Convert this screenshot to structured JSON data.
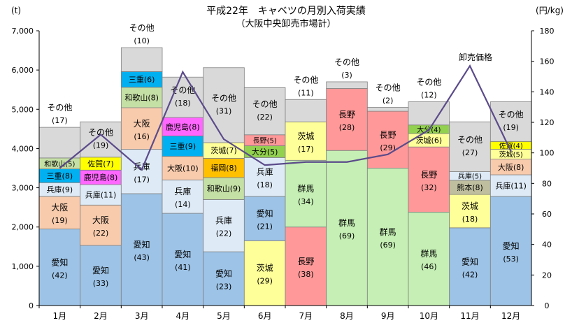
{
  "chart_data": {
    "type": "stacked-bar-with-line",
    "title": "平成22年　キャベツの月別入荷実績",
    "subtitle": "（大阪中央卸売市場計）",
    "left_unit": "(t)",
    "right_unit": "(円/kg)",
    "ylim_left": [
      0,
      7000
    ],
    "yticks_left": [
      "0",
      "1,000",
      "2,000",
      "3,000",
      "4,000",
      "5,000",
      "6,000",
      "7,000"
    ],
    "ylim_right": [
      0,
      180
    ],
    "yticks_right": [
      "0",
      "20",
      "40",
      "60",
      "80",
      "100",
      "120",
      "140",
      "160",
      "180"
    ],
    "grid": false,
    "categories": [
      "1月",
      "2月",
      "3月",
      "4月",
      "5月",
      "6月",
      "7月",
      "8月",
      "9月",
      "10月",
      "11月",
      "12月"
    ],
    "colors": {
      "愛知": "#9DC3E6",
      "大阪": "#F8CBAD",
      "兵庫": "#DEEBF7",
      "三重": "#00B0F0",
      "和歌山": "#C5E0A5",
      "佐賀": "#FFFF00",
      "鹿児島": "#FF66FF",
      "福岡": "#FFC000",
      "茨城": "#FFFF99",
      "群馬": "#C5EFB4",
      "長野": "#FF9999",
      "大分": "#92D050",
      "熊本": "#BFBFA0",
      "その他": "#D9D9D9"
    },
    "bars": [
      {
        "month": "1月",
        "stack": [
          {
            "name": "愛知",
            "value": 1950,
            "label": "愛知",
            "share": "(42)"
          },
          {
            "name": "大阪",
            "value": 830,
            "label": "大阪",
            "share": "(19)"
          },
          {
            "name": "兵庫",
            "value": 350,
            "label": "兵庫",
            "share": "(9)"
          },
          {
            "name": "三重",
            "value": 350,
            "label": "三重",
            "share": "(8)"
          },
          {
            "name": "和歌山",
            "value": 280,
            "label": "和歌山",
            "share": "(5)"
          },
          {
            "name": "その他",
            "value": 780,
            "label": "その他",
            "share": "(17)"
          }
        ]
      },
      {
        "month": "2月",
        "stack": [
          {
            "name": "愛知",
            "value": 1530,
            "label": "愛知",
            "share": "(33)"
          },
          {
            "name": "大阪",
            "value": 1030,
            "label": "大阪",
            "share": "(22)"
          },
          {
            "name": "兵庫",
            "value": 520,
            "label": "兵庫",
            "share": "(11)"
          },
          {
            "name": "鹿児島",
            "value": 370,
            "label": "鹿児島",
            "share": "(8)"
          },
          {
            "name": "佐賀",
            "value": 330,
            "label": "佐賀",
            "share": "(7)"
          },
          {
            "name": "その他",
            "value": 900,
            "label": "その他",
            "share": "(19)"
          }
        ]
      },
      {
        "month": "3月",
        "stack": [
          {
            "name": "愛知",
            "value": 2850,
            "label": "愛知",
            "share": "(43)"
          },
          {
            "name": "兵庫",
            "value": 1130,
            "label": "兵庫",
            "share": "(17)"
          },
          {
            "name": "大阪",
            "value": 1060,
            "label": "大阪",
            "share": "(16)"
          },
          {
            "name": "和歌山",
            "value": 520,
            "label": "和歌山",
            "share": "(8)"
          },
          {
            "name": "三重",
            "value": 400,
            "label": "三重",
            "share": "(6)"
          },
          {
            "name": "その他",
            "value": 610,
            "label": "その他",
            "share": "(10)"
          }
        ]
      },
      {
        "month": "4月",
        "stack": [
          {
            "name": "愛知",
            "value": 2350,
            "label": "愛知",
            "share": "(41)"
          },
          {
            "name": "兵庫",
            "value": 850,
            "label": "兵庫",
            "share": "(14)"
          },
          {
            "name": "大阪",
            "value": 600,
            "label": "大阪",
            "share": "(10)"
          },
          {
            "name": "三重",
            "value": 520,
            "label": "三重",
            "share": "(9)"
          },
          {
            "name": "鹿児島",
            "value": 470,
            "label": "鹿児島",
            "share": "(8)"
          },
          {
            "name": "その他",
            "value": 1030,
            "label": "その他",
            "share": "(18)"
          }
        ]
      },
      {
        "month": "5月",
        "stack": [
          {
            "name": "愛知",
            "value": 1370,
            "label": "愛知",
            "share": "(23)"
          },
          {
            "name": "兵庫",
            "value": 1330,
            "label": "兵庫",
            "share": "(22)"
          },
          {
            "name": "和歌山",
            "value": 560,
            "label": "和歌山",
            "share": "(9)"
          },
          {
            "name": "福岡",
            "value": 490,
            "label": "福岡",
            "share": "(8)"
          },
          {
            "name": "茨城",
            "value": 400,
            "label": "茨城",
            "share": "(7)"
          },
          {
            "name": "その他",
            "value": 1910,
            "label": "その他",
            "share": "(31)"
          }
        ]
      },
      {
        "month": "6月",
        "stack": [
          {
            "name": "茨城",
            "value": 1650,
            "label": "茨城",
            "share": "(29)"
          },
          {
            "name": "愛知",
            "value": 1130,
            "label": "愛知",
            "share": "(21)"
          },
          {
            "name": "兵庫",
            "value": 990,
            "label": "兵庫",
            "share": "(18)"
          },
          {
            "name": "大分",
            "value": 300,
            "label": "大分",
            "share": "(5)"
          },
          {
            "name": "長野",
            "value": 280,
            "label": "長野",
            "share": "(5)"
          },
          {
            "name": "その他",
            "value": 1200,
            "label": "その他",
            "share": "(22)"
          }
        ]
      },
      {
        "month": "7月",
        "stack": [
          {
            "name": "長野",
            "value": 2000,
            "label": "長野",
            "share": "(38)"
          },
          {
            "name": "群馬",
            "value": 1700,
            "label": "群馬",
            "share": "(34)"
          },
          {
            "name": "茨城",
            "value": 980,
            "label": "茨城",
            "share": "(17)"
          },
          {
            "name": "その他",
            "value": 570,
            "label": "その他",
            "share": "(11)"
          }
        ]
      },
      {
        "month": "8月",
        "stack": [
          {
            "name": "群馬",
            "value": 3950,
            "label": "群馬",
            "share": "(69)"
          },
          {
            "name": "長野",
            "value": 1580,
            "label": "長野",
            "share": "(28)"
          },
          {
            "name": "その他",
            "value": 170,
            "label": "その他",
            "share": "(3)"
          }
        ]
      },
      {
        "month": "9月",
        "stack": [
          {
            "name": "群馬",
            "value": 3500,
            "label": "群馬",
            "share": "(69)"
          },
          {
            "name": "長野",
            "value": 1450,
            "label": "長野",
            "share": "(29)"
          },
          {
            "name": "その他",
            "value": 100,
            "label": "その他",
            "share": "(2)"
          }
        ]
      },
      {
        "month": "10月",
        "stack": [
          {
            "name": "群馬",
            "value": 2380,
            "label": "群馬",
            "share": "(46)"
          },
          {
            "name": "長野",
            "value": 1660,
            "label": "長野",
            "share": "(32)"
          },
          {
            "name": "茨城",
            "value": 340,
            "label": "茨城",
            "share": "(6)"
          },
          {
            "name": "大分",
            "value": 220,
            "label": "大分",
            "share": "(4)"
          },
          {
            "name": "その他",
            "value": 590,
            "label": "その他",
            "share": "(12)"
          }
        ]
      },
      {
        "month": "11月",
        "stack": [
          {
            "name": "愛知",
            "value": 1980,
            "label": "愛知",
            "share": "(42)"
          },
          {
            "name": "茨城",
            "value": 850,
            "label": "茨城",
            "share": "(18)"
          },
          {
            "name": "熊本",
            "value": 360,
            "label": "熊本",
            "share": "(8)"
          },
          {
            "name": "兵庫",
            "value": 220,
            "label": "兵庫",
            "share": "(5)"
          },
          {
            "name": "その他",
            "value": 1270,
            "label": "その他",
            "share": "(27)"
          }
        ]
      },
      {
        "month": "12月",
        "stack": [
          {
            "name": "愛知",
            "value": 2780,
            "label": "愛知",
            "share": "(53)"
          },
          {
            "name": "兵庫",
            "value": 550,
            "label": "兵庫",
            "share": "(11)"
          },
          {
            "name": "大阪",
            "value": 400,
            "label": "大阪",
            "share": "(8)"
          },
          {
            "name": "茨城",
            "value": 250,
            "label": "茨城",
            "share": "(5)"
          },
          {
            "name": "佐賀",
            "value": 200,
            "label": "佐賀",
            "share": "(4)"
          },
          {
            "name": "その他",
            "value": 1010,
            "label": "その他",
            "share": "(19)"
          }
        ]
      }
    ],
    "line_series": {
      "name": "卸売価格",
      "color": "#5B4B8A",
      "values": [
        90,
        112,
        89,
        153,
        109,
        92,
        94,
        94,
        99,
        115,
        157,
        101
      ]
    }
  }
}
